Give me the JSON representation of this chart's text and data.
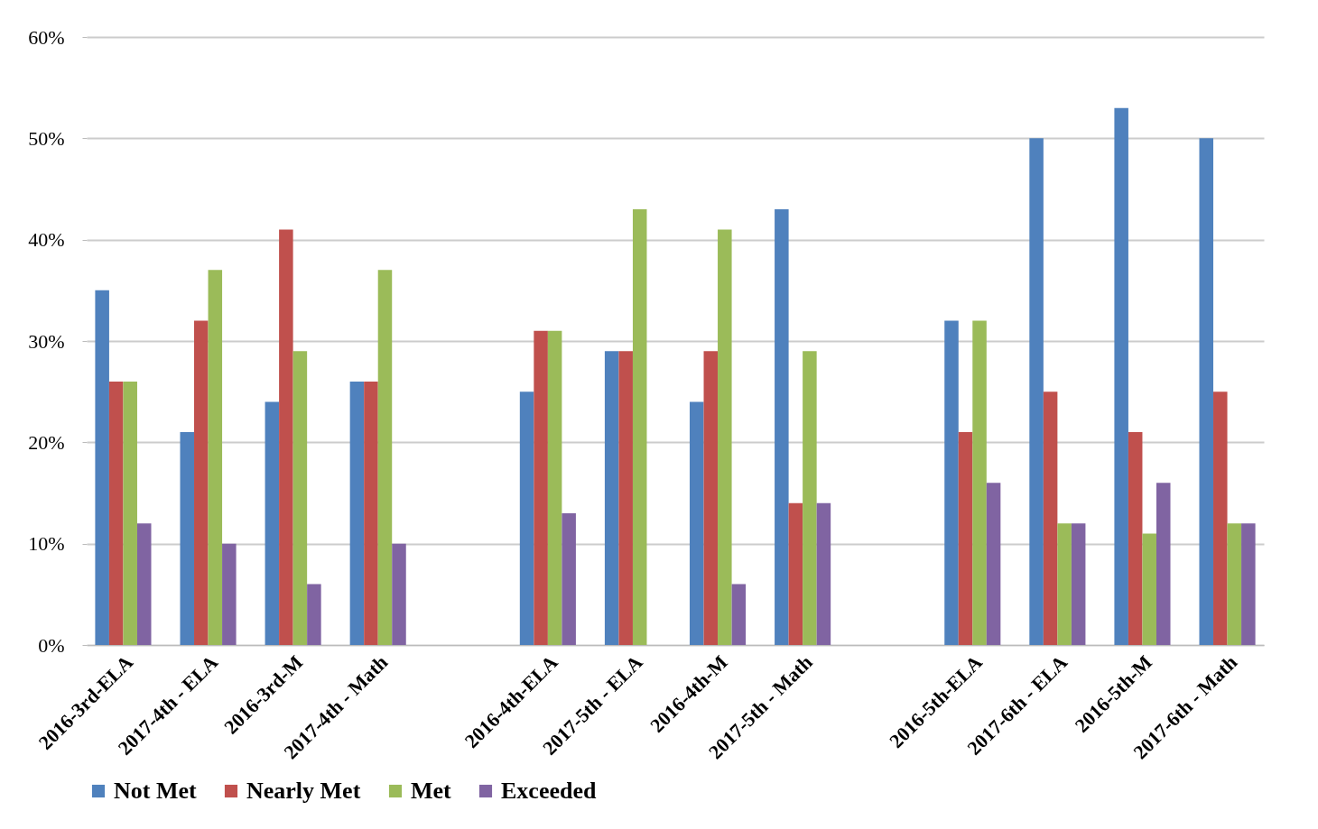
{
  "chart_data": {
    "type": "bar",
    "categories": [
      "2016-3rd-ELA",
      "2017-4th - ELA",
      "2016-3rd-M",
      "2017-4th - Math",
      null,
      "2016-4th-ELA",
      "2017-5th - ELA",
      "2016-4th-M",
      "2017-5th - Math",
      null,
      "2016-5th-ELA",
      "2017-6th - ELA",
      "2016-5th-M",
      "2017-6th - Math"
    ],
    "series": [
      {
        "name": "Not Met",
        "color": "#4f81bd",
        "values": [
          35,
          21,
          24,
          26,
          null,
          25,
          29,
          24,
          43,
          null,
          32,
          50,
          53,
          50
        ]
      },
      {
        "name": "Nearly Met",
        "color": "#c0504d",
        "values": [
          26,
          32,
          41,
          26,
          null,
          31,
          29,
          29,
          14,
          null,
          21,
          25,
          21,
          25
        ]
      },
      {
        "name": "Met",
        "color": "#9bbb59",
        "values": [
          26,
          37,
          29,
          37,
          null,
          31,
          43,
          41,
          29,
          null,
          32,
          12,
          11,
          12
        ]
      },
      {
        "name": "Exceeded",
        "color": "#8064a2",
        "values": [
          12,
          10,
          6,
          10,
          null,
          13,
          0,
          6,
          14,
          null,
          16,
          12,
          16,
          12
        ]
      }
    ],
    "ylim": [
      0,
      60
    ],
    "yticks": [
      {
        "value": 0,
        "label": "0%"
      },
      {
        "value": 10,
        "label": "10%"
      },
      {
        "value": 20,
        "label": "20%"
      },
      {
        "value": 30,
        "label": "30%"
      },
      {
        "value": 40,
        "label": "40%"
      },
      {
        "value": 50,
        "label": "50%"
      },
      {
        "value": 60,
        "label": "60%"
      }
    ],
    "grid": "y",
    "legend": "bottom"
  }
}
